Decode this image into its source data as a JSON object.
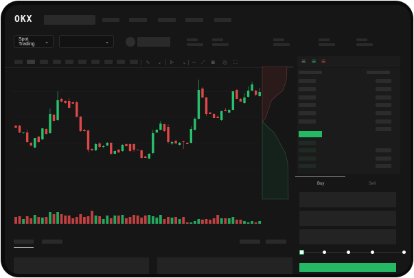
{
  "header": {
    "logo": "OKX"
  },
  "toolbar": {
    "market_selector": "Spot Trading",
    "chevron": "⌄"
  },
  "trade": {
    "buy_tab": "Buy",
    "sell_tab": "Sell"
  },
  "colors": {
    "up": "#27c26c",
    "down": "#e04848",
    "accent": "#25b865"
  },
  "chart_data": {
    "type": "candlestick",
    "ohlc": [
      [
        68,
        69,
        64,
        65
      ],
      [
        68,
        69,
        57,
        58
      ],
      [
        57,
        58,
        56,
        58
      ],
      [
        58,
        62,
        43,
        44
      ],
      [
        43,
        44,
        38,
        39
      ],
      [
        36,
        50,
        35,
        50
      ],
      [
        52,
        53,
        43,
        44
      ],
      [
        48,
        65,
        47,
        64
      ],
      [
        63,
        64,
        55,
        56
      ],
      [
        57,
        93,
        56,
        85
      ],
      [
        84,
        85,
        74,
        75
      ],
      [
        76,
        118,
        75,
        105
      ],
      [
        107,
        108,
        102,
        103
      ],
      [
        104,
        105,
        100,
        101
      ],
      [
        104,
        108,
        93,
        94
      ],
      [
        102,
        103,
        99,
        100
      ],
      [
        102,
        104,
        80,
        81
      ],
      [
        81,
        82,
        59,
        60
      ],
      [
        62,
        63,
        59,
        60
      ],
      [
        61,
        62,
        29,
        33
      ],
      [
        34,
        35,
        31,
        32
      ],
      [
        32,
        43,
        31,
        41
      ],
      [
        42,
        44,
        35,
        37
      ],
      [
        37,
        40,
        35,
        38
      ],
      [
        39,
        44,
        38,
        43
      ],
      [
        43,
        44,
        25,
        27
      ],
      [
        27,
        32,
        26,
        31
      ],
      [
        33,
        34,
        28,
        29
      ],
      [
        31,
        41,
        30,
        40
      ],
      [
        41,
        42,
        38,
        38
      ],
      [
        41,
        42,
        29,
        31
      ],
      [
        41,
        42,
        30,
        33
      ],
      [
        33,
        33,
        32,
        32
      ],
      [
        32,
        33,
        20,
        21
      ],
      [
        23,
        24,
        21,
        21
      ],
      [
        20,
        28,
        19,
        27
      ],
      [
        28,
        62,
        26,
        57
      ],
      [
        58,
        63,
        57,
        62
      ],
      [
        62,
        75,
        61,
        71
      ],
      [
        70,
        71,
        59,
        60
      ],
      [
        66,
        70,
        42,
        44
      ],
      [
        42,
        46,
        40,
        44
      ],
      [
        46,
        47,
        42,
        42
      ],
      [
        40,
        44,
        39,
        43
      ],
      [
        45,
        46,
        34,
        44
      ],
      [
        43,
        44,
        41,
        41
      ],
      [
        43,
        67,
        42,
        63
      ],
      [
        62,
        80,
        61,
        78
      ],
      [
        78,
        135,
        77,
        120
      ],
      [
        122,
        124,
        108,
        109
      ],
      [
        109,
        110,
        82,
        85
      ],
      [
        87,
        88,
        85,
        85
      ],
      [
        85,
        86,
        79,
        79
      ],
      [
        81,
        83,
        79,
        79
      ],
      [
        76,
        90,
        75,
        89
      ],
      [
        91,
        94,
        89,
        89
      ],
      [
        87,
        92,
        86,
        91
      ],
      [
        91,
        118,
        90,
        118
      ],
      [
        120,
        121,
        107,
        107
      ],
      [
        107,
        108,
        103,
        103
      ],
      [
        101,
        116,
        100,
        109
      ],
      [
        110,
        125,
        109,
        119
      ],
      [
        119,
        132,
        118,
        128
      ],
      [
        119,
        120,
        111,
        113
      ],
      [
        111,
        123,
        110,
        117
      ]
    ],
    "volume": [
      10,
      11,
      7,
      11,
      8,
      13,
      10,
      9,
      10,
      17,
      14,
      17,
      14,
      12,
      12,
      8,
      10,
      14,
      10,
      11,
      19,
      12,
      11,
      7,
      12,
      8,
      12,
      12,
      13,
      8,
      10,
      13,
      12,
      9,
      12,
      13,
      11,
      9,
      13,
      7,
      10,
      9,
      10,
      7,
      10,
      2,
      2,
      4,
      7,
      6,
      7,
      6,
      8,
      13,
      8,
      8,
      8,
      10,
      6,
      6,
      4,
      2,
      4,
      2,
      4
    ]
  }
}
